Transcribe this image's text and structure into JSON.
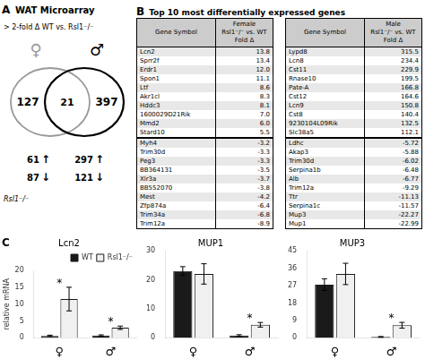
{
  "chart_data": [
    {
      "type": "venn",
      "panel": "A",
      "title": "WAT Microarray",
      "subtitle": "> 2-fold Δ WT vs. Rsl1⁻/⁻",
      "series": [
        {
          "name": "♀",
          "color": "#999999"
        },
        {
          "name": "♂",
          "color": "#000000"
        }
      ],
      "values": [
        127,
        21,
        397
      ],
      "rows": [
        {
          "label": "↑",
          "values": [
            61,
            297
          ]
        },
        {
          "label": "↓",
          "values": [
            87,
            121
          ]
        }
      ],
      "footnote": "Rsl1⁻/⁻"
    },
    {
      "type": "table",
      "panel": "B",
      "title": "Top 10 most differentially expressed genes",
      "tables": [
        {
          "columns": [
            "Gene Symbol",
            [
              "Female",
              "Rsl1⁻/⁻ vs. WT",
              "Fold Δ"
            ]
          ],
          "genes_up": [
            "Lcn2",
            "Sprr2f",
            "Erdr1",
            "Spon1",
            "Ltf",
            "Akr1cl",
            "Hddc3",
            "1600029D21Rik",
            "Mmd2",
            "Stard10"
          ],
          "folds_up": [
            "13.8",
            "13.4",
            "12.0",
            "11.1",
            "8.6",
            "8.3",
            "8.1",
            "7.0",
            "6.0",
            "5.5"
          ],
          "genes_down": [
            "Myh4",
            "Trim30d",
            "Peg3",
            "BB364131",
            "Xlr3a",
            "BB552070",
            "Mest",
            "Zfp874a",
            "Trim34a",
            "Trim12a"
          ],
          "folds_down": [
            "-3.2",
            "-3.3",
            "-3.3",
            "-3.5",
            "-3.7",
            "-3.8",
            "-4.2",
            "-6.4",
            "-6.8",
            "-8.9"
          ]
        },
        {
          "columns": [
            "Gene Symbol",
            [
              "Male",
              "Rsl1⁻/⁻ vs. WT",
              "Fold Δ"
            ]
          ],
          "genes_up": [
            "Lypd8",
            "Lcn8",
            "Cst11",
            "Rnase10",
            "Pate-A",
            "Cst12",
            "Lcn9",
            "Cst8",
            "9230104L09Rik",
            "Slc38a5"
          ],
          "folds_up": [
            "315.5",
            "234.4",
            "229.9",
            "199.5",
            "166.8",
            "164.6",
            "150.8",
            "140.4",
            "132.5",
            "112.1"
          ],
          "genes_down": [
            "Ldhc",
            "Akap3",
            "Trim30d",
            "Serpina1b",
            "Alb",
            "Trim12a",
            "Ttr",
            "Serpina1c",
            "Mup3",
            "Mup1"
          ],
          "folds_down": [
            "-5.72",
            "-5.88",
            "-6.02",
            "-6.48",
            "-6.77",
            "-9.29",
            "-11.13",
            "-11.57",
            "-22.27",
            "-22.99"
          ]
        }
      ]
    },
    {
      "type": "bar",
      "panel": "C",
      "title": "Lcn2",
      "ylabel": "relative mRNA",
      "categories": [
        "♀",
        "♂"
      ],
      "series": [
        {
          "name": "WT",
          "color": "#1a1a1a",
          "values": [
            0.6,
            0.7
          ],
          "errors": [
            0.2,
            0.2
          ]
        },
        {
          "name": "Rsl1⁻/⁻",
          "color": "#f0f0f0",
          "values": [
            11.5,
            3.0
          ],
          "errors": [
            3.5,
            0.5
          ]
        }
      ],
      "ylim": [
        0,
        20
      ],
      "yticks": [
        0,
        5,
        10,
        15,
        20
      ],
      "grid": false,
      "legend": "upper right",
      "annotations": [
        {
          "text": "*",
          "category": "♀"
        },
        {
          "text": "*",
          "category": "♂"
        }
      ]
    },
    {
      "type": "bar",
      "title": "MUP1",
      "categories": [
        "♀",
        "♂"
      ],
      "series": [
        {
          "name": "WT",
          "color": "#1a1a1a",
          "values": [
            23.0,
            0.8
          ],
          "errors": [
            1.5,
            0.3
          ]
        },
        {
          "name": "Rsl1⁻/⁻",
          "color": "#f0f0f0",
          "values": [
            22.0,
            4.5
          ],
          "errors": [
            3.5,
            0.8
          ]
        }
      ],
      "ylim": [
        0,
        30
      ],
      "yticks": [
        0,
        10,
        20,
        30
      ],
      "grid": false,
      "annotations": [
        {
          "text": "*",
          "category": "♂"
        }
      ]
    },
    {
      "type": "bar",
      "title": "MUP3",
      "categories": [
        "♀",
        "♂"
      ],
      "series": [
        {
          "name": "WT",
          "color": "#1a1a1a",
          "values": [
            27.5,
            0.5
          ],
          "errors": [
            3.0,
            0.2
          ]
        },
        {
          "name": "Rsl1⁻/⁻",
          "color": "#f0f0f0",
          "values": [
            33.0,
            6.5
          ],
          "errors": [
            5.5,
            1.5
          ]
        }
      ],
      "ylim": [
        0,
        45
      ],
      "yticks": [
        0,
        9,
        18,
        27,
        36,
        45
      ],
      "grid": false,
      "annotations": [
        {
          "text": "*",
          "category": "♂"
        }
      ]
    }
  ]
}
